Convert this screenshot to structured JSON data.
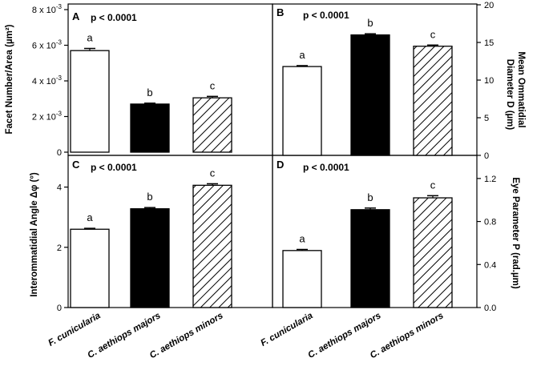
{
  "chart_data": [
    {
      "type": "bar",
      "panel": "A",
      "title": "A",
      "p_value": "p < 0.0001",
      "ylabel": "Facet Number/Area (µm²)",
      "y_axis_side": "left",
      "ylim": [
        0,
        0.008
      ],
      "yticks": [
        {
          "value": 0,
          "label": "0",
          "exp": ""
        },
        {
          "value": 0.002,
          "label": "2 x 10",
          "exp": "-3"
        },
        {
          "value": 0.004,
          "label": "4 x 10",
          "exp": "-3"
        },
        {
          "value": 0.006,
          "label": "6 x 10",
          "exp": "-3"
        },
        {
          "value": 0.008,
          "label": "8 x 10",
          "exp": "-3"
        }
      ],
      "categories": [
        "F. cunicularia",
        "C. aethiops majors",
        "C. aethiops minors"
      ],
      "values": [
        0.0057,
        0.0027,
        0.00305
      ],
      "errors": [
        0.00012,
        5e-05,
        8e-05
      ],
      "fills": [
        "white",
        "black",
        "hatched"
      ],
      "letters": [
        "a",
        "b",
        "c"
      ]
    },
    {
      "type": "bar",
      "panel": "B",
      "title": "B",
      "p_value": "p < 0.0001",
      "ylabel": "Mean Ommatidial Diameter D (µm)",
      "ylabel_lines": [
        "Mean Ommatidial",
        "Diameter D (µm)"
      ],
      "y_axis_side": "right",
      "ylim": [
        0,
        20
      ],
      "yticks": [
        {
          "value": 0,
          "label": "0"
        },
        {
          "value": 5,
          "label": "5"
        },
        {
          "value": 10,
          "label": "10"
        },
        {
          "value": 15,
          "label": "15"
        },
        {
          "value": 20,
          "label": "20"
        }
      ],
      "categories": [
        "F. cunicularia",
        "C. aethiops majors",
        "C. aethiops minors"
      ],
      "values": [
        11.8,
        16.0,
        14.5
      ],
      "errors": [
        0.12,
        0.15,
        0.15
      ],
      "fills": [
        "white",
        "black",
        "hatched"
      ],
      "letters": [
        "a",
        "b",
        "c"
      ]
    },
    {
      "type": "bar",
      "panel": "C",
      "title": "C",
      "p_value": "p < 0.0001",
      "ylabel": "Interommatidial Angle Δφ (°)",
      "y_axis_side": "left",
      "ylim": [
        0,
        5
      ],
      "yticks": [
        {
          "value": 0,
          "label": "0"
        },
        {
          "value": 2,
          "label": "2"
        },
        {
          "value": 4,
          "label": "4"
        }
      ],
      "categories": [
        "F. cunicularia",
        "C. aethiops majors",
        "C. aethiops minors"
      ],
      "values": [
        2.6,
        3.28,
        4.06
      ],
      "errors": [
        0.03,
        0.04,
        0.05
      ],
      "fills": [
        "white",
        "black",
        "hatched"
      ],
      "letters": [
        "a",
        "b",
        "c"
      ]
    },
    {
      "type": "bar",
      "panel": "D",
      "title": "D",
      "p_value": "p < 0.0001",
      "ylabel": "Eye Parameter P (rad.µm)",
      "y_axis_side": "right",
      "ylim": [
        0,
        1.4
      ],
      "yticks": [
        {
          "value": 0,
          "label": "0.0"
        },
        {
          "value": 0.4,
          "label": "0.4"
        },
        {
          "value": 0.8,
          "label": "0.8"
        },
        {
          "value": 1.2,
          "label": "1.2"
        }
      ],
      "categories": [
        "F. cunicularia",
        "C. aethiops majors",
        "C. aethiops minors"
      ],
      "values": [
        0.53,
        0.91,
        1.02
      ],
      "errors": [
        0.01,
        0.015,
        0.02
      ],
      "fills": [
        "white",
        "black",
        "hatched"
      ],
      "letters": [
        "a",
        "b",
        "c"
      ]
    }
  ]
}
